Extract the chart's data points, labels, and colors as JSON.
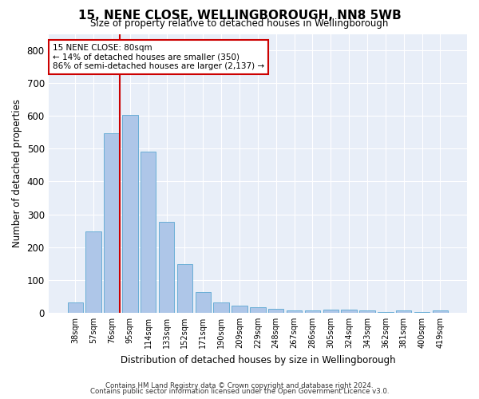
{
  "title": "15, NENE CLOSE, WELLINGBOROUGH, NN8 5WB",
  "subtitle": "Size of property relative to detached houses in Wellingborough",
  "xlabel": "Distribution of detached houses by size in Wellingborough",
  "ylabel": "Number of detached properties",
  "categories": [
    "38sqm",
    "57sqm",
    "76sqm",
    "95sqm",
    "114sqm",
    "133sqm",
    "152sqm",
    "171sqm",
    "190sqm",
    "209sqm",
    "229sqm",
    "248sqm",
    "267sqm",
    "286sqm",
    "305sqm",
    "324sqm",
    "343sqm",
    "362sqm",
    "381sqm",
    "400sqm",
    "419sqm"
  ],
  "values": [
    32,
    248,
    548,
    604,
    492,
    278,
    147,
    62,
    32,
    22,
    16,
    12,
    8,
    6,
    10,
    10,
    8,
    3,
    7,
    3,
    7
  ],
  "bar_color": "#aec6e8",
  "bar_edgecolor": "#6aaed6",
  "background_color": "#e8eef8",
  "vline_color": "#cc0000",
  "vline_index": 2,
  "annotation_text": "15 NENE CLOSE: 80sqm\n← 14% of detached houses are smaller (350)\n86% of semi-detached houses are larger (2,137) →",
  "annotation_box_edgecolor": "#cc0000",
  "footnote_line1": "Contains HM Land Registry data © Crown copyright and database right 2024.",
  "footnote_line2": "Contains public sector information licensed under the Open Government Licence v3.0.",
  "ylim": [
    0,
    850
  ],
  "yticks": [
    0,
    100,
    200,
    300,
    400,
    500,
    600,
    700,
    800
  ],
  "bar_width": 0.85
}
